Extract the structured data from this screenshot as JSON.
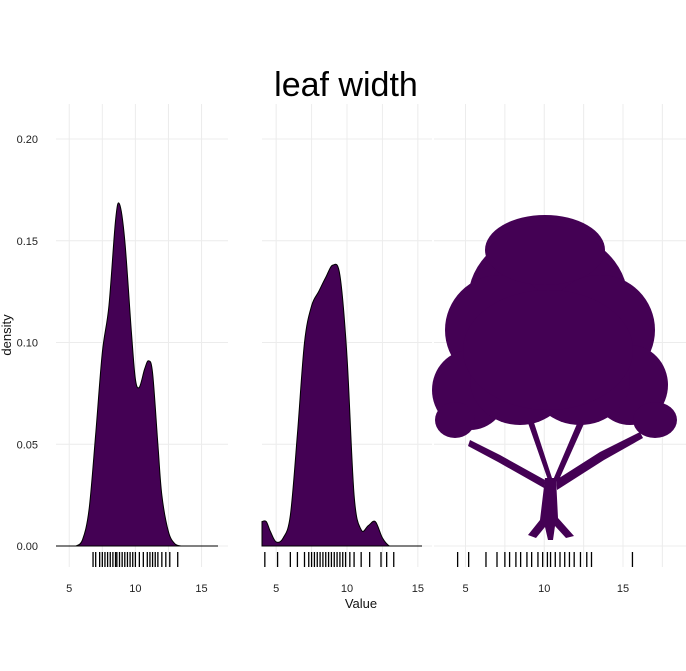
{
  "chart_data": {
    "type": "area",
    "title": "leaf  width",
    "xlabel": "Value",
    "ylabel": "density",
    "ylim": [
      0,
      0.2
    ],
    "y_ticks": [
      0.0,
      0.05,
      0.1,
      0.15,
      0.2
    ],
    "y_tick_labels": [
      "0.00",
      "0.05",
      "0.10",
      "0.15",
      "0.20"
    ],
    "x_ticks": [
      5,
      10,
      15
    ],
    "x_tick_labels": [
      "5",
      "10",
      "15"
    ],
    "grid": true,
    "fill_color": "#440154",
    "panels": [
      {
        "shape": "density",
        "xlim": [
          4,
          17
        ],
        "x": [
          5.5,
          6.0,
          6.5,
          7.0,
          7.5,
          8.0,
          8.5,
          8.8,
          9.2,
          9.7,
          10.0,
          10.3,
          10.7,
          11.0,
          11.3,
          11.7,
          12.0,
          12.5,
          13.0,
          13.5,
          14.0
        ],
        "y": [
          0.0,
          0.003,
          0.018,
          0.055,
          0.095,
          0.118,
          0.16,
          0.168,
          0.15,
          0.105,
          0.082,
          0.078,
          0.087,
          0.091,
          0.085,
          0.05,
          0.025,
          0.007,
          0.001,
          0.0,
          0.0
        ],
        "rug": [
          6.8,
          7.0,
          7.3,
          7.5,
          7.7,
          7.9,
          8.1,
          8.3,
          8.5,
          8.6,
          8.8,
          9.0,
          9.2,
          9.4,
          9.6,
          9.8,
          10.0,
          10.3,
          10.6,
          10.9,
          11.1,
          11.3,
          11.5,
          11.7,
          12.0,
          12.3,
          12.6,
          13.2
        ]
      },
      {
        "shape": "density",
        "xlim": [
          4,
          16
        ],
        "x": [
          4.0,
          4.3,
          4.6,
          5.0,
          5.5,
          6.0,
          6.5,
          7.0,
          7.5,
          8.0,
          8.5,
          9.0,
          9.5,
          10.0,
          10.5,
          11.0,
          11.5,
          12.0,
          12.5,
          13.0,
          13.5
        ],
        "y": [
          0.012,
          0.012,
          0.007,
          0.002,
          0.004,
          0.015,
          0.055,
          0.1,
          0.118,
          0.125,
          0.132,
          0.138,
          0.133,
          0.093,
          0.025,
          0.008,
          0.01,
          0.012,
          0.004,
          0.0,
          0.0
        ],
        "rug": [
          4.2,
          5.1,
          6.0,
          6.5,
          7.0,
          7.3,
          7.5,
          7.7,
          7.9,
          8.1,
          8.3,
          8.5,
          8.7,
          8.9,
          9.1,
          9.3,
          9.5,
          9.7,
          9.9,
          10.2,
          10.5,
          11.0,
          11.6,
          12.4,
          12.8,
          13.3
        ]
      },
      {
        "shape": "tree",
        "xlim": [
          3,
          19
        ],
        "rug": [
          4.5,
          5.2,
          6.3,
          7.0,
          7.5,
          7.8,
          8.2,
          8.5,
          8.9,
          9.2,
          9.6,
          9.9,
          10.2,
          10.4,
          10.7,
          11.0,
          11.3,
          11.6,
          11.9,
          12.3,
          12.7,
          13.0,
          15.6
        ]
      }
    ]
  }
}
